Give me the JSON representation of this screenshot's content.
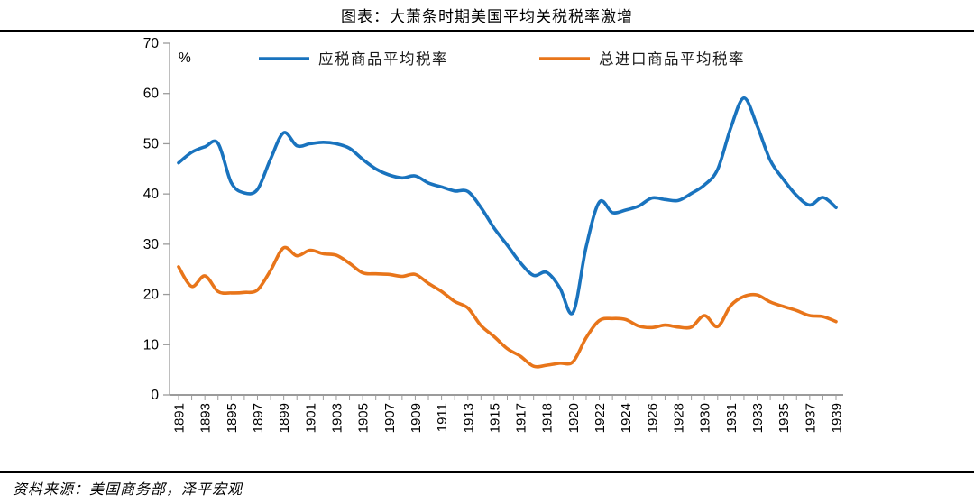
{
  "title": "图表：大萧条时期美国平均关税税率激增",
  "source": "资料来源：美国商务部，泽平宏观",
  "chart_data": {
    "type": "line",
    "title": "图表：大萧条时期美国平均关税税率激增",
    "unit_label": "%",
    "xlabel": "",
    "ylabel": "",
    "ylim": [
      0,
      70
    ],
    "yticks": [
      0,
      10,
      20,
      30,
      40,
      50,
      60,
      70
    ],
    "grid": false,
    "legend_position": "top",
    "x_tick_label_step": 2,
    "visible_x_labels": [
      "1891",
      "1893",
      "1895",
      "1897",
      "1899",
      "1901",
      "1903",
      "1905",
      "1907",
      "1909",
      "1911",
      "1913",
      "1915",
      "1917",
      "1918",
      "1920",
      "1922",
      "1924",
      "1926",
      "1928",
      "1930",
      "1931",
      "1933",
      "1935",
      "1937",
      "1939"
    ],
    "categories": [
      "1891",
      "1892",
      "1893",
      "1894",
      "1895",
      "1896",
      "1897",
      "1898",
      "1899",
      "1900",
      "1901",
      "1902",
      "1903",
      "1904",
      "1905",
      "1906",
      "1907",
      "1908",
      "1909",
      "1910",
      "1911",
      "1912",
      "1913",
      "1914",
      "1915",
      "1916",
      "1917",
      "1918",
      "1918",
      "1919",
      "1920",
      "1921",
      "1922",
      "1923",
      "1924",
      "1925",
      "1926",
      "1927",
      "1928",
      "1929",
      "1930",
      "1930",
      "1931",
      "1932",
      "1933",
      "1934",
      "1935",
      "1936",
      "1937",
      "1938",
      "1939"
    ],
    "series": [
      {
        "name": "应税商品平均税率",
        "color": "#1973BE",
        "values": [
          46.2,
          48.3,
          49.4,
          50.1,
          42.3,
          40.2,
          40.9,
          47.0,
          52.2,
          49.6,
          50.0,
          50.3,
          50.0,
          49.1,
          46.9,
          45.0,
          43.8,
          43.2,
          43.6,
          42.2,
          41.4,
          40.6,
          40.5,
          37.3,
          33.2,
          29.8,
          26.3,
          23.8,
          24.4,
          21.3,
          16.4,
          29.5,
          38.4,
          36.3,
          36.8,
          37.6,
          39.2,
          38.9,
          38.7,
          40.1,
          41.8,
          44.9,
          53.2,
          59.1,
          53.6,
          46.7,
          42.9,
          39.7,
          37.8,
          39.3,
          37.3
        ]
      },
      {
        "name": "总进口商品平均税率",
        "color": "#E8751A",
        "values": [
          25.5,
          21.6,
          23.7,
          20.6,
          20.3,
          20.4,
          20.9,
          24.8,
          29.3,
          27.7,
          28.8,
          28.1,
          27.8,
          26.2,
          24.3,
          24.1,
          24.0,
          23.6,
          24.0,
          22.2,
          20.6,
          18.6,
          17.3,
          13.8,
          11.6,
          9.2,
          7.7,
          5.7,
          5.9,
          6.3,
          6.6,
          11.4,
          14.8,
          15.2,
          15.0,
          13.7,
          13.4,
          13.9,
          13.5,
          13.5,
          15.8,
          13.6,
          17.8,
          19.6,
          19.9,
          18.5,
          17.6,
          16.8,
          15.8,
          15.6,
          14.6
        ]
      }
    ],
    "axis_color": "#9B9B9B",
    "tick_label_color": "#000000"
  }
}
